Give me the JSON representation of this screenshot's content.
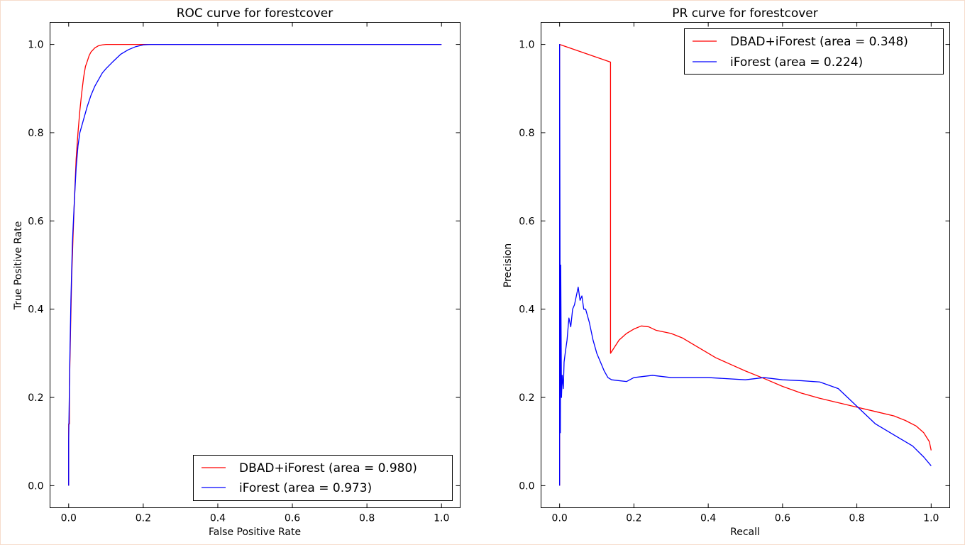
{
  "chart_data": [
    {
      "type": "line",
      "title": "ROC curve for forestcover",
      "xlabel": "False Positive Rate",
      "ylabel": "True Positive Rate",
      "xlim": [
        -0.05,
        1.05
      ],
      "ylim": [
        -0.05,
        1.05
      ],
      "xticks": [
        "0.0",
        "0.2",
        "0.4",
        "0.6",
        "0.8",
        "1.0"
      ],
      "yticks": [
        "0.0",
        "0.2",
        "0.4",
        "0.6",
        "0.8",
        "1.0"
      ],
      "legend_position": "lower-right",
      "series": [
        {
          "name": "DBAD+iForest (area = 0.980)",
          "color": "#ff0000",
          "x": [
            0.0,
            0.0,
            0.002,
            0.002,
            0.005,
            0.008,
            0.012,
            0.016,
            0.02,
            0.025,
            0.03,
            0.035,
            0.04,
            0.045,
            0.05,
            0.055,
            0.06,
            0.07,
            0.08,
            0.09,
            0.1,
            0.12,
            0.15,
            0.2,
            0.3,
            0.5,
            0.7,
            1.0
          ],
          "y": [
            0.0,
            0.14,
            0.14,
            0.22,
            0.35,
            0.47,
            0.57,
            0.66,
            0.74,
            0.8,
            0.85,
            0.89,
            0.925,
            0.95,
            0.962,
            0.975,
            0.983,
            0.992,
            0.997,
            0.999,
            1.0,
            1.0,
            1.0,
            1.0,
            1.0,
            1.0,
            1.0,
            1.0
          ]
        },
        {
          "name": "iForest (area = 0.973)",
          "color": "#0000ff",
          "x": [
            0.0,
            0.0,
            0.003,
            0.006,
            0.01,
            0.015,
            0.02,
            0.025,
            0.03,
            0.04,
            0.05,
            0.06,
            0.07,
            0.08,
            0.09,
            0.1,
            0.12,
            0.14,
            0.16,
            0.18,
            0.2,
            0.22,
            0.3,
            0.5,
            0.7,
            1.0
          ],
          "y": [
            0.0,
            0.1,
            0.28,
            0.42,
            0.55,
            0.64,
            0.72,
            0.77,
            0.8,
            0.83,
            0.86,
            0.885,
            0.905,
            0.92,
            0.935,
            0.945,
            0.962,
            0.978,
            0.988,
            0.995,
            0.999,
            1.0,
            1.0,
            1.0,
            1.0,
            1.0
          ]
        }
      ]
    },
    {
      "type": "line",
      "title": "PR curve for forestcover",
      "xlabel": "Recall",
      "ylabel": "Precision",
      "xlim": [
        -0.05,
        1.05
      ],
      "ylim": [
        -0.05,
        1.05
      ],
      "xticks": [
        "0.0",
        "0.2",
        "0.4",
        "0.6",
        "0.8",
        "1.0"
      ],
      "yticks": [
        "0.0",
        "0.2",
        "0.4",
        "0.6",
        "0.8",
        "1.0"
      ],
      "legend_position": "upper-right",
      "series": [
        {
          "name": "DBAD+iForest (area = 0.348)",
          "color": "#ff0000",
          "x": [
            0.0,
            0.0,
            0.137,
            0.137,
            0.16,
            0.18,
            0.2,
            0.22,
            0.24,
            0.26,
            0.3,
            0.33,
            0.36,
            0.4,
            0.42,
            0.46,
            0.5,
            0.55,
            0.6,
            0.65,
            0.7,
            0.75,
            0.8,
            0.85,
            0.9,
            0.93,
            0.96,
            0.98,
            0.995,
            1.0
          ],
          "y": [
            0.0,
            1.0,
            0.96,
            0.3,
            0.33,
            0.345,
            0.355,
            0.362,
            0.36,
            0.352,
            0.345,
            0.335,
            0.32,
            0.3,
            0.29,
            0.275,
            0.26,
            0.243,
            0.225,
            0.21,
            0.198,
            0.188,
            0.178,
            0.168,
            0.158,
            0.148,
            0.135,
            0.12,
            0.1,
            0.08
          ]
        },
        {
          "name": "iForest (area = 0.224)",
          "color": "#0000ff",
          "x": [
            0.0,
            0.0,
            0.002,
            0.003,
            0.005,
            0.007,
            0.01,
            0.012,
            0.015,
            0.02,
            0.025,
            0.03,
            0.035,
            0.04,
            0.045,
            0.05,
            0.055,
            0.06,
            0.065,
            0.07,
            0.08,
            0.09,
            0.1,
            0.11,
            0.12,
            0.13,
            0.14,
            0.16,
            0.18,
            0.2,
            0.25,
            0.3,
            0.4,
            0.5,
            0.55,
            0.6,
            0.65,
            0.7,
            0.75,
            0.8,
            0.85,
            0.9,
            0.95,
            0.98,
            1.0
          ],
          "y": [
            0.0,
            1.0,
            0.12,
            0.5,
            0.2,
            0.25,
            0.22,
            0.28,
            0.3,
            0.33,
            0.38,
            0.36,
            0.4,
            0.41,
            0.43,
            0.45,
            0.42,
            0.43,
            0.4,
            0.4,
            0.37,
            0.33,
            0.3,
            0.28,
            0.26,
            0.245,
            0.24,
            0.238,
            0.236,
            0.245,
            0.25,
            0.245,
            0.245,
            0.24,
            0.245,
            0.24,
            0.238,
            0.235,
            0.22,
            0.18,
            0.14,
            0.115,
            0.09,
            0.065,
            0.045
          ]
        }
      ]
    }
  ]
}
